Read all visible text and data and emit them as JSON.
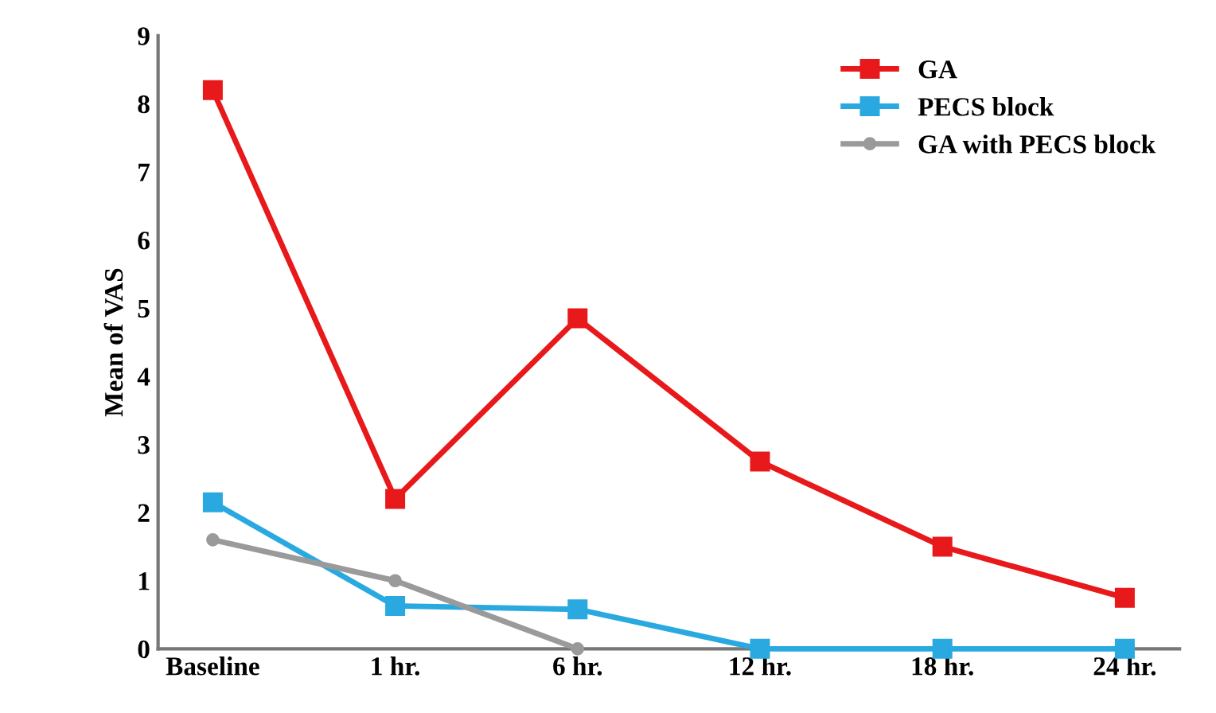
{
  "chart_data": {
    "type": "line",
    "ylabel": "Mean of VAS",
    "categories": [
      "Baseline",
      "1 hr.",
      "6 hr.",
      "12 hr.",
      "18 hr.",
      "24 hr."
    ],
    "ylim": [
      0,
      9
    ],
    "yticks": [
      0,
      1,
      2,
      3,
      4,
      5,
      6,
      7,
      8,
      9
    ],
    "grid": false,
    "legend": "top right",
    "series": [
      {
        "name": "GA",
        "color": "#e8191b",
        "marker": "square",
        "values": [
          8.2,
          2.2,
          4.85,
          2.75,
          1.5,
          0.75
        ]
      },
      {
        "name": "PECS block",
        "color": "#29a9e0",
        "marker": "square",
        "values": [
          2.15,
          0.63,
          0.58,
          0,
          0,
          0
        ]
      },
      {
        "name": "GA with PECS block",
        "color": "#9a9a9a",
        "marker": "circle",
        "values": [
          1.6,
          1.0,
          0,
          null,
          null,
          null
        ]
      }
    ]
  }
}
